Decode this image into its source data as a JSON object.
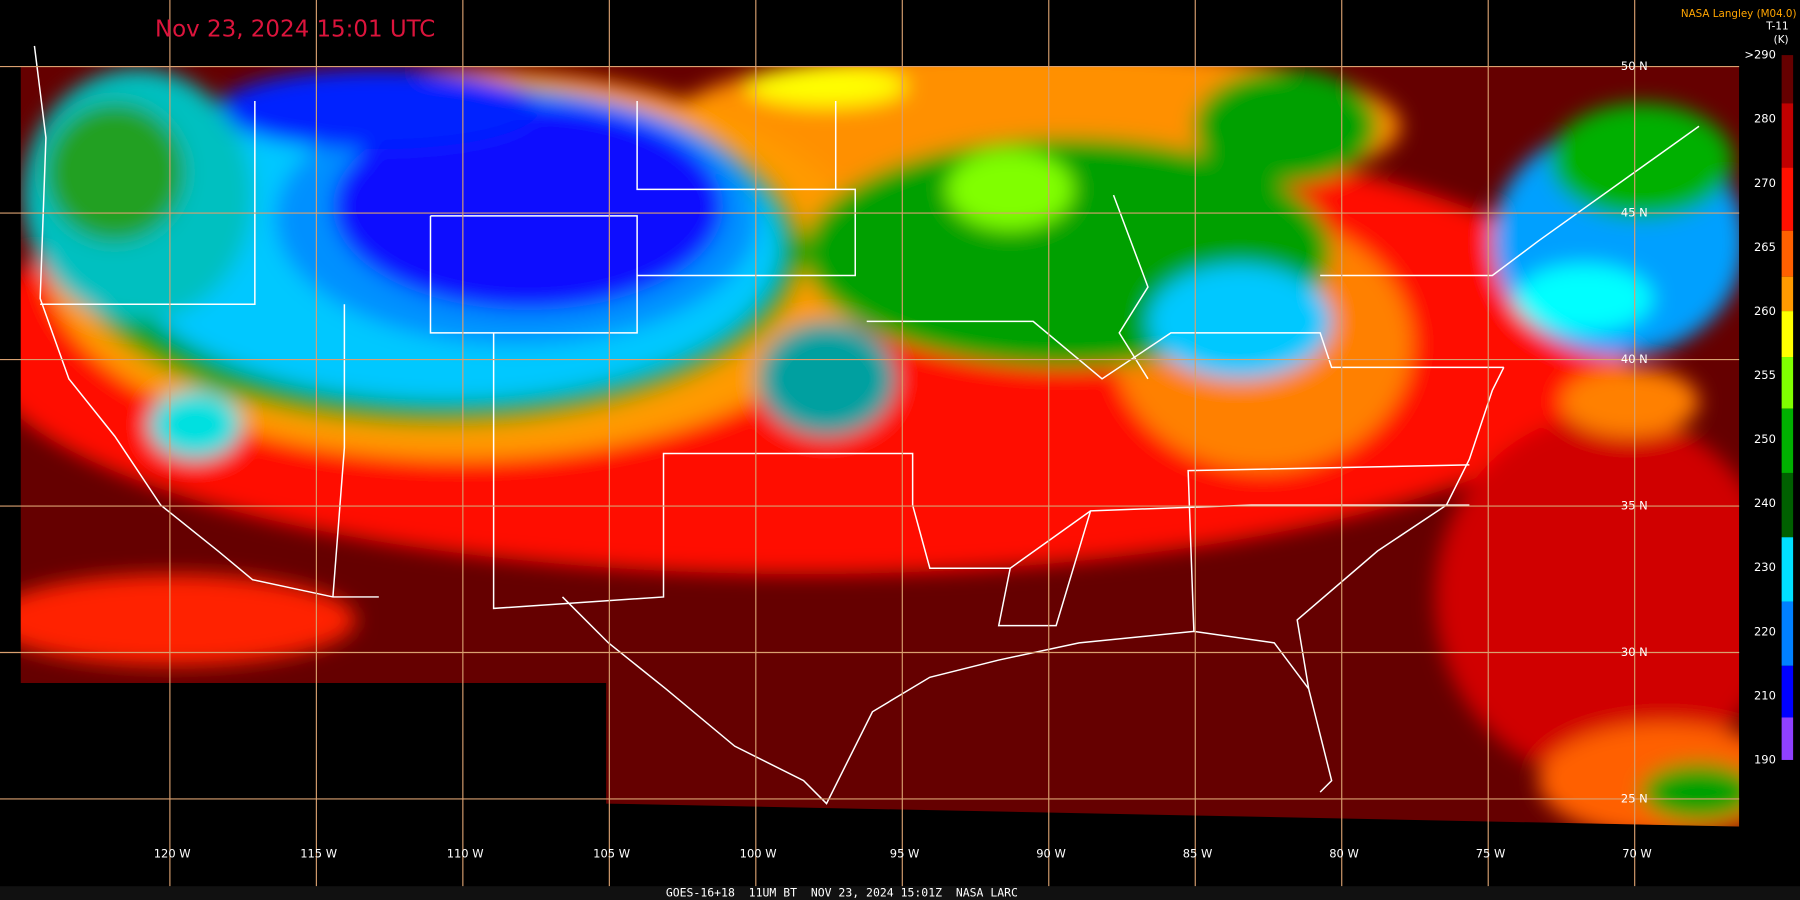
{
  "header": {
    "title": "Nov 23, 2024 15:01 UTC",
    "source": "NASA Langley (M04.0)"
  },
  "colorbar": {
    "title": "T-11",
    "unit": "(K)",
    "labels": [
      ">290",
      "280",
      "270",
      "265",
      "260",
      "255",
      "250",
      "240",
      "230",
      "220",
      "210",
      "190"
    ]
  },
  "grid": {
    "latitudes": [
      "50 N",
      "45 N",
      "40 N",
      "35 N",
      "30 N",
      "25 N"
    ],
    "longitudes": [
      "120 W",
      "115 W",
      "110 W",
      "105 W",
      "100 W",
      "95 W",
      "90 W",
      "85 W",
      "80 W",
      "75 W",
      "70 W"
    ]
  },
  "footer": "GOES-16+18  11UM BT  NOV 23, 2024 15:01Z  NASA LARC"
}
